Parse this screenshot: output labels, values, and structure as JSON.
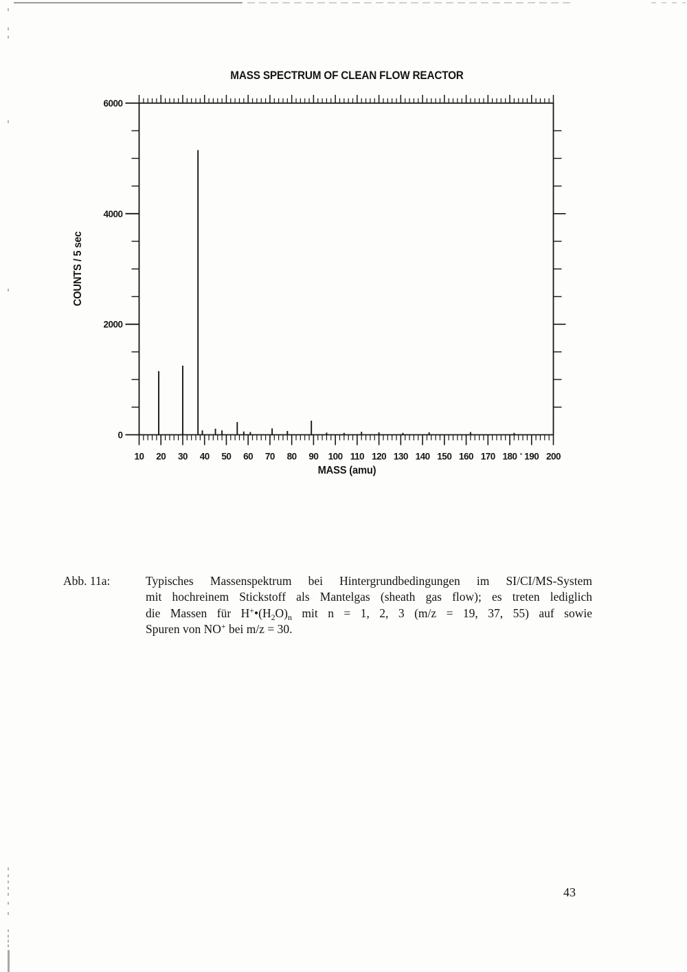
{
  "page_number": "43",
  "chart_data": {
    "type": "bar",
    "title": "MASS SPECTRUM OF CLEAN FLOW REACTOR",
    "xlabel": "MASS (amu)",
    "ylabel": "COUNTS / 5 sec",
    "xlim": [
      10,
      200
    ],
    "ylim": [
      0,
      6000
    ],
    "x_major_tick_step": 10,
    "x_minor_tick_step": 2,
    "y_major_tick_step": 2000,
    "y_minor_tick_step": 500,
    "grid": false,
    "legend": false,
    "x_tick_labels": [
      "10",
      "20",
      "30",
      "40",
      "50",
      "60",
      "70",
      "80",
      "90",
      "100",
      "110",
      "120",
      "130",
      "140",
      "150",
      "160",
      "170",
      "180",
      "190",
      "200"
    ],
    "y_ticks": [
      {
        "value": 0,
        "label": "0"
      },
      {
        "value": 2000,
        "label": "2000"
      },
      {
        "value": 4000,
        "label": "4000"
      },
      {
        "value": 6000,
        "label": "6000"
      }
    ],
    "peaks": [
      {
        "mz": 19,
        "counts": 1150
      },
      {
        "mz": 30,
        "counts": 1250
      },
      {
        "mz": 37,
        "counts": 5150
      },
      {
        "mz": 39,
        "counts": 80
      },
      {
        "mz": 45,
        "counts": 110
      },
      {
        "mz": 48,
        "counts": 80
      },
      {
        "mz": 55,
        "counts": 230
      },
      {
        "mz": 58,
        "counts": 60
      },
      {
        "mz": 61,
        "counts": 50
      },
      {
        "mz": 71,
        "counts": 115
      },
      {
        "mz": 78,
        "counts": 70
      },
      {
        "mz": 89,
        "counts": 255
      },
      {
        "mz": 96,
        "counts": 40
      },
      {
        "mz": 104,
        "counts": 35
      },
      {
        "mz": 112,
        "counts": 55
      },
      {
        "mz": 120,
        "counts": 45
      },
      {
        "mz": 131,
        "counts": 35
      },
      {
        "mz": 143,
        "counts": 45
      },
      {
        "mz": 162,
        "counts": 50
      },
      {
        "mz": 182,
        "counts": 35
      }
    ]
  },
  "caption": {
    "label": "Abb. 11a:",
    "lines": [
      {
        "justify": true,
        "segments": [
          {
            "t": "Typisches Massenspektrum bei Hintergrundbedingungen im SI/CI/MS-System"
          }
        ]
      },
      {
        "justify": true,
        "segments": [
          {
            "t": "mit hochreinem Stickstoff als Mantelgas (sheath gas flow); es treten lediglich"
          }
        ]
      },
      {
        "justify": true,
        "segments": [
          {
            "t": "die Massen für H"
          },
          {
            "sup": "+"
          },
          {
            "t": "•(H"
          },
          {
            "sub": "2"
          },
          {
            "t": "O)"
          },
          {
            "sub": "n"
          },
          {
            "t": " mit n = 1, 2, 3 (m/z = 19, 37, 55) auf sowie"
          }
        ]
      },
      {
        "justify": false,
        "segments": [
          {
            "t": "Spuren von NO"
          },
          {
            "sup": "+"
          },
          {
            "t": " bei m/z = 30."
          }
        ]
      }
    ]
  }
}
